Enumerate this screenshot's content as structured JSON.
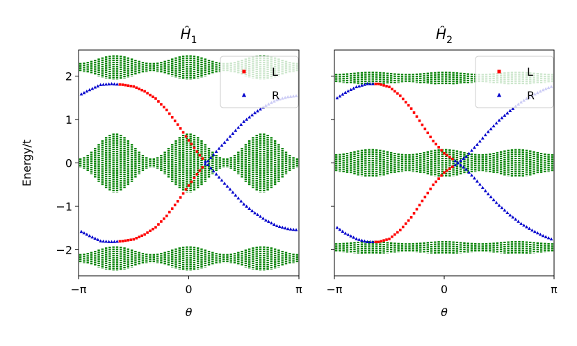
{
  "chart_data": [
    {
      "type": "scatter",
      "title": "Ĥ1",
      "title_base": "Ĥ",
      "title_sub": "1",
      "xlabel": "θ",
      "ylabel": "Energy/t",
      "xlim": [
        -3.1416,
        3.1416
      ],
      "ylim": [
        -2.6,
        2.6
      ],
      "xticks": [
        {
          "value": -3.1416,
          "label": "−π"
        },
        {
          "value": 0,
          "label": "0"
        },
        {
          "value": 3.1416,
          "label": "π"
        }
      ],
      "yticks": [
        {
          "value": -2,
          "label": "−2"
        },
        {
          "value": -1,
          "label": "−1"
        },
        {
          "value": 0,
          "label": "0"
        },
        {
          "value": 1,
          "label": "1"
        },
        {
          "value": 2,
          "label": "2"
        }
      ],
      "legend": {
        "placement": "top-right",
        "entries": [
          {
            "label": "L",
            "color": "#ff0000",
            "marker": "square"
          },
          {
            "label": "R",
            "color": "#0000cc",
            "marker": "triangle"
          }
        ]
      },
      "bulk_bands": {
        "color": "#008000",
        "columns": 60,
        "bands": [
          {
            "center": 2.2,
            "half_width_min": 0.1,
            "half_width_max": 0.28,
            "modulation": "cos2"
          },
          {
            "center": 0.0,
            "half_width_min": 0.1,
            "half_width_max": 0.68,
            "modulation": "cos2"
          },
          {
            "center": -2.2,
            "half_width_min": 0.1,
            "half_width_max": 0.28,
            "modulation": "cos2"
          }
        ]
      },
      "series": [
        {
          "name": "L",
          "color": "#ff0000",
          "marker": "square",
          "x": [
            -3.14,
            -2.83,
            -2.51,
            -2.2,
            -1.88,
            -1.57,
            -1.26,
            -0.94,
            -0.63,
            -0.31,
            0.0,
            0.31,
            0.63,
            0.94,
            1.26,
            1.57,
            1.88,
            2.2,
            2.51,
            2.83,
            3.14
          ],
          "y_upper": [
            1.55,
            1.68,
            1.8,
            1.82,
            1.8,
            1.76,
            1.65,
            1.48,
            1.22,
            0.88,
            0.52,
            0.18,
            -0.12,
            -0.4,
            -0.68,
            -0.95,
            -1.15,
            -1.32,
            -1.45,
            -1.52,
            -1.55
          ],
          "y_lower": [
            -1.55,
            -1.68,
            -1.8,
            -1.82,
            -1.8,
            -1.76,
            -1.65,
            -1.48,
            -1.22,
            -0.88,
            -0.52,
            -0.18,
            0.12,
            0.4,
            0.68,
            0.95,
            1.15,
            1.32,
            1.45,
            1.52,
            1.55
          ],
          "visible_range": [
            -2.0,
            0.4
          ]
        },
        {
          "name": "R",
          "color": "#0000cc",
          "marker": "triangle",
          "x": [
            -3.14,
            -2.83,
            -2.51,
            -2.2,
            -1.88,
            -1.57,
            -1.26,
            -0.94,
            -0.63,
            -0.31,
            0.0,
            0.31,
            0.63,
            0.94,
            1.26,
            1.57,
            1.88,
            2.2,
            2.51,
            2.83,
            3.14
          ],
          "y_upper": [
            1.55,
            1.68,
            1.8,
            1.82,
            1.8,
            1.76,
            1.65,
            1.48,
            1.22,
            0.88,
            0.52,
            0.18,
            -0.12,
            -0.4,
            -0.68,
            -0.95,
            -1.15,
            -1.32,
            -1.45,
            -1.52,
            -1.55
          ],
          "y_lower": [
            -1.55,
            -1.68,
            -1.8,
            -1.82,
            -1.8,
            -1.76,
            -1.65,
            -1.48,
            -1.22,
            -0.88,
            -0.52,
            -0.18,
            0.12,
            0.4,
            0.68,
            0.95,
            1.15,
            1.32,
            1.45,
            1.52,
            1.55
          ],
          "visible_range": [
            -3.14,
            -2.0,
            0.4,
            3.14
          ]
        }
      ]
    },
    {
      "type": "scatter",
      "title": "Ĥ2",
      "title_base": "Ĥ",
      "title_sub": "2",
      "xlabel": "θ",
      "ylabel": "",
      "xlim": [
        -3.1416,
        3.1416
      ],
      "ylim": [
        -2.6,
        2.6
      ],
      "xticks": [
        {
          "value": -3.1416,
          "label": "−π"
        },
        {
          "value": 0,
          "label": "0"
        },
        {
          "value": 3.1416,
          "label": "π"
        }
      ],
      "yticks": [
        {
          "value": -2,
          "label": ""
        },
        {
          "value": -1,
          "label": ""
        },
        {
          "value": 0,
          "label": ""
        },
        {
          "value": 1,
          "label": ""
        },
        {
          "value": 2,
          "label": ""
        }
      ],
      "legend": {
        "placement": "top-right",
        "entries": [
          {
            "label": "L",
            "color": "#ff0000",
            "marker": "square"
          },
          {
            "label": "R",
            "color": "#0000cc",
            "marker": "triangle"
          }
        ]
      },
      "bulk_bands": {
        "color": "#008000",
        "columns": 60,
        "bands": [
          {
            "center": 1.95,
            "half_width_min": 0.1,
            "half_width_max": 0.15,
            "modulation": "cos2"
          },
          {
            "center": 0.0,
            "half_width_min": 0.2,
            "half_width_max": 0.32,
            "modulation": "cos2"
          },
          {
            "center": -1.95,
            "half_width_min": 0.1,
            "half_width_max": 0.15,
            "modulation": "cos2"
          }
        ]
      },
      "series": [
        {
          "name": "L",
          "color": "#ff0000",
          "marker": "square",
          "x": [
            -3.14,
            -2.83,
            -2.51,
            -2.2,
            -1.88,
            -1.57,
            -1.26,
            -0.94,
            -0.63,
            -0.31,
            0.0,
            0.31,
            0.63,
            0.94,
            1.26,
            1.57,
            1.88,
            2.2,
            2.51,
            2.83,
            3.14
          ],
          "y_upper": [
            1.45,
            1.62,
            1.75,
            1.82,
            1.82,
            1.75,
            1.55,
            1.25,
            0.88,
            0.5,
            0.22,
            0.05,
            -0.15,
            -0.42,
            -0.72,
            -0.98,
            -1.2,
            -1.4,
            -1.55,
            -1.68,
            -1.78
          ],
          "y_lower": [
            -1.45,
            -1.62,
            -1.75,
            -1.82,
            -1.82,
            -1.75,
            -1.55,
            -1.25,
            -0.88,
            -0.5,
            -0.22,
            -0.05,
            0.15,
            0.42,
            0.72,
            0.98,
            1.2,
            1.4,
            1.55,
            1.68,
            1.78
          ],
          "visible_range": [
            -2.0,
            0.3
          ]
        },
        {
          "name": "R",
          "color": "#0000cc",
          "marker": "triangle",
          "x": [
            -3.14,
            -2.83,
            -2.51,
            -2.2,
            -1.88,
            -1.57,
            -1.26,
            -0.94,
            -0.63,
            -0.31,
            0.0,
            0.31,
            0.63,
            0.94,
            1.26,
            1.57,
            1.88,
            2.2,
            2.51,
            2.83,
            3.14
          ],
          "y_upper": [
            1.45,
            1.62,
            1.75,
            1.82,
            1.82,
            1.75,
            1.55,
            1.25,
            0.88,
            0.5,
            0.22,
            0.05,
            -0.15,
            -0.42,
            -0.72,
            -0.98,
            -1.2,
            -1.4,
            -1.55,
            -1.68,
            -1.78
          ],
          "y_lower": [
            -1.45,
            -1.62,
            -1.75,
            -1.82,
            -1.82,
            -1.75,
            -1.55,
            -1.25,
            -0.88,
            -0.5,
            -0.22,
            -0.05,
            0.15,
            0.42,
            0.72,
            0.98,
            1.2,
            1.4,
            1.55,
            1.68,
            1.78
          ],
          "visible_range": [
            -3.14,
            -2.0,
            0.3,
            3.14
          ]
        }
      ]
    }
  ]
}
